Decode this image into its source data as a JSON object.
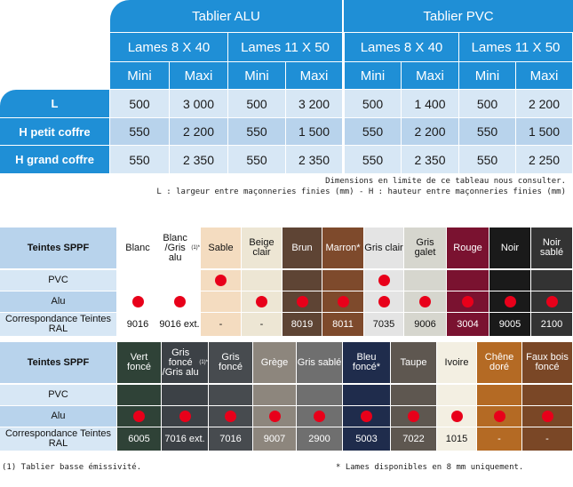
{
  "dimensions_table": {
    "groups": [
      "Tablier ALU",
      "Tablier PVC"
    ],
    "subgroups": [
      "Lames 8 X 40",
      "Lames 11 X 50",
      "Lames 8 X 40",
      "Lames 11 X 50"
    ],
    "minmax": [
      "Mini",
      "Maxi",
      "Mini",
      "Maxi",
      "Mini",
      "Maxi",
      "Mini",
      "Maxi"
    ],
    "rows": [
      {
        "label": "L",
        "values": [
          "500",
          "3 000",
          "500",
          "3 200",
          "500",
          "1 400",
          "500",
          "2 200"
        ]
      },
      {
        "label": "H petit coffre",
        "values": [
          "550",
          "2 200",
          "550",
          "1 500",
          "550",
          "2 200",
          "550",
          "1 500"
        ]
      },
      {
        "label": "H grand coffre",
        "values": [
          "550",
          "2 350",
          "550",
          "2 350",
          "550",
          "2 350",
          "550",
          "2 250"
        ]
      }
    ]
  },
  "notes": {
    "line1": "Dimensions en limite de ce tableau nous consulter.",
    "line2": "L : largeur entre maçonneries finies (mm) - H : hauteur entre maçonneries finies (mm)"
  },
  "colors_table_1": {
    "header": "Teintes SPPF",
    "row_labels": [
      "PVC",
      "Alu",
      "Correspondance Teintes RAL"
    ],
    "items": [
      {
        "name": "Blanc",
        "sup": "",
        "color": "#ffffff",
        "text_color": "#111111",
        "pvc": false,
        "alu": true,
        "ral": "9016"
      },
      {
        "name": "Blanc /Gris alu",
        "sup": "(1)*",
        "color": "#ffffff",
        "text_color": "#111111",
        "pvc": false,
        "alu": true,
        "ral": "9016 ext."
      },
      {
        "name": "Sable",
        "sup": "",
        "color": "#f4dcc0",
        "text_color": "#111111",
        "pvc": true,
        "alu": false,
        "ral": "-"
      },
      {
        "name": "Beige clair",
        "sup": "",
        "color": "#ede6d4",
        "text_color": "#111111",
        "pvc": false,
        "alu": true,
        "ral": "-"
      },
      {
        "name": "Brun",
        "sup": "",
        "color": "#5e4434",
        "text_color": "#ffffff",
        "pvc": false,
        "alu": true,
        "ral": "8019"
      },
      {
        "name": "Marron*",
        "sup": "",
        "color": "#7e4a2c",
        "text_color": "#ffffff",
        "pvc": false,
        "alu": true,
        "ral": "8011"
      },
      {
        "name": "Gris clair",
        "sup": "",
        "color": "#e4e4e4",
        "text_color": "#111111",
        "pvc": true,
        "alu": true,
        "ral": "7035"
      },
      {
        "name": "Gris galet",
        "sup": "",
        "color": "#d6d6ce",
        "text_color": "#111111",
        "pvc": false,
        "alu": true,
        "ral": "9006"
      },
      {
        "name": "Rouge",
        "sup": "",
        "color": "#7a1230",
        "text_color": "#ffffff",
        "pvc": false,
        "alu": true,
        "ral": "3004"
      },
      {
        "name": "Noir",
        "sup": "",
        "color": "#1a1a1a",
        "text_color": "#ffffff",
        "pvc": false,
        "alu": true,
        "ral": "9005"
      },
      {
        "name": "Noir sablé",
        "sup": "",
        "color": "#333333",
        "text_color": "#ffffff",
        "pvc": false,
        "alu": true,
        "ral": "2100"
      }
    ]
  },
  "colors_table_2": {
    "header": "Teintes SPPF",
    "row_labels": [
      "PVC",
      "Alu",
      "Correspondance Teintes RAL"
    ],
    "items": [
      {
        "name": "Vert foncé",
        "sup": "",
        "color": "#2f4237",
        "text_color": "#ffffff",
        "pvc": false,
        "alu": true,
        "ral": "6005"
      },
      {
        "name": "Gris foncé /Gris alu",
        "sup": "(1)*",
        "color": "#3c4146",
        "text_color": "#ffffff",
        "pvc": false,
        "alu": true,
        "ral": "7016 ext."
      },
      {
        "name": "Gris foncé",
        "sup": "",
        "color": "#474b4f",
        "text_color": "#ffffff",
        "pvc": false,
        "alu": true,
        "ral": "7016"
      },
      {
        "name": "Grège",
        "sup": "",
        "color": "#8d867d",
        "text_color": "#ffffff",
        "pvc": false,
        "alu": true,
        "ral": "9007"
      },
      {
        "name": "Gris sablé",
        "sup": "",
        "color": "#6f6f6f",
        "text_color": "#ffffff",
        "pvc": false,
        "alu": true,
        "ral": "2900"
      },
      {
        "name": "Bleu foncé*",
        "sup": "",
        "color": "#1f2c4c",
        "text_color": "#ffffff",
        "pvc": false,
        "alu": true,
        "ral": "5003"
      },
      {
        "name": "Taupe",
        "sup": "",
        "color": "#5e5750",
        "text_color": "#ffffff",
        "pvc": false,
        "alu": true,
        "ral": "7022"
      },
      {
        "name": "Ivoire",
        "sup": "",
        "color": "#f3efe2",
        "text_color": "#111111",
        "pvc": false,
        "alu": true,
        "ral": "1015"
      },
      {
        "name": "Chêne doré",
        "sup": "",
        "color": "#b46a24",
        "text_color": "#ffffff",
        "pvc": false,
        "alu": true,
        "ral": "-"
      },
      {
        "name": "Faux bois foncé",
        "sup": "",
        "color": "#7a4726",
        "text_color": "#ffffff",
        "pvc": false,
        "alu": true,
        "ral": "-"
      }
    ]
  },
  "footnotes": {
    "left": "(1) Tablier basse émissivité.",
    "right": "* Lames disponibles en 8 mm uniquement."
  },
  "colors": {
    "accent": "#1f8fd6",
    "dot": "#e8001a"
  }
}
